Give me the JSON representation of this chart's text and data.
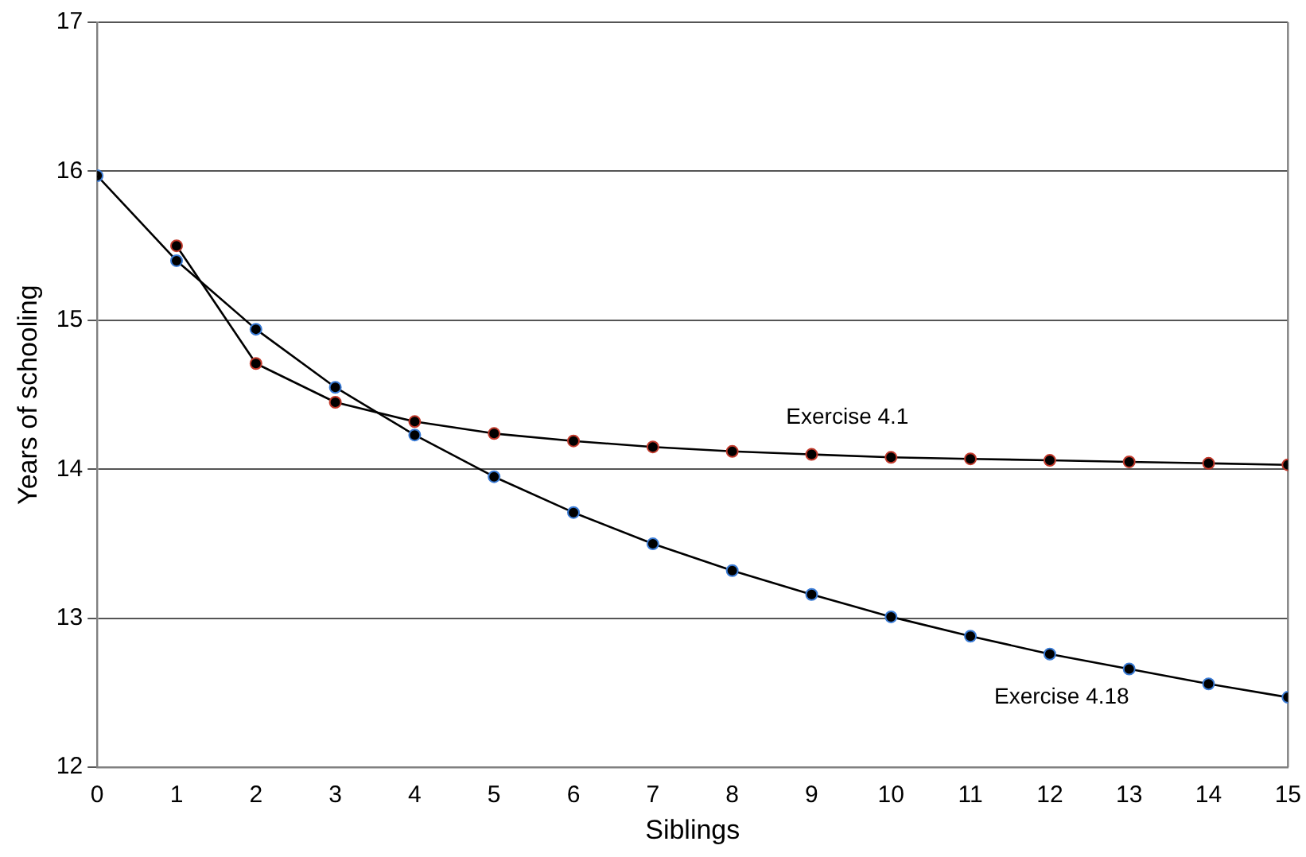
{
  "chart_data": {
    "type": "line",
    "xlabel": "Siblings",
    "ylabel": "Years of schooling",
    "x": [
      0,
      1,
      2,
      3,
      4,
      5,
      6,
      7,
      8,
      9,
      10,
      11,
      12,
      13,
      14,
      15
    ],
    "xlim": [
      0,
      15
    ],
    "xticks": [
      0,
      1,
      2,
      3,
      4,
      5,
      6,
      7,
      8,
      9,
      10,
      11,
      12,
      13,
      14,
      15
    ],
    "ylim": [
      12,
      17
    ],
    "yticks": [
      12,
      13,
      14,
      15,
      16,
      17
    ],
    "grid": "y",
    "marker": "circle",
    "line_style": "solid",
    "legend": false,
    "series": [
      {
        "name": "Exercise 4.1",
        "color": "#000000",
        "values": [
          null,
          15.5,
          14.71,
          14.45,
          14.32,
          14.24,
          14.19,
          14.15,
          14.12,
          14.1,
          14.08,
          14.07,
          14.06,
          14.05,
          14.04,
          14.03
        ]
      },
      {
        "name": "Exercise 4.18",
        "color": "#000000",
        "values": [
          15.97,
          15.4,
          14.94,
          14.55,
          14.23,
          13.95,
          13.71,
          13.5,
          13.32,
          13.16,
          13.01,
          12.88,
          12.76,
          12.66,
          12.56,
          12.47
        ]
      }
    ]
  }
}
